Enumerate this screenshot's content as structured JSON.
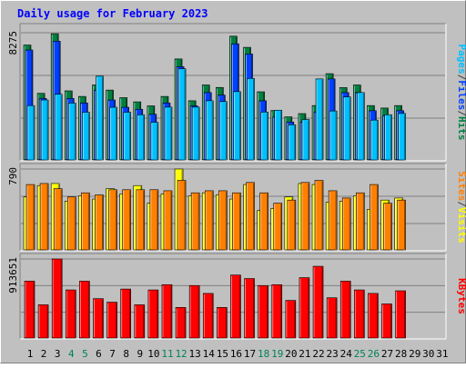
{
  "chart_data": [
    {
      "type": "bar",
      "title": "Daily usage for February 2023",
      "max_label": "8275",
      "legend": [
        "Pages",
        "/",
        "Files",
        "/",
        "Hits"
      ],
      "legend_colors": [
        "#00c0ff",
        "#404040",
        "#0040ff",
        "#404040",
        "#008040"
      ],
      "categories": [
        "1",
        "2",
        "3",
        "4",
        "5",
        "6",
        "7",
        "8",
        "9",
        "10",
        "11",
        "12",
        "13",
        "14",
        "15",
        "16",
        "17",
        "18",
        "19",
        "20",
        "21",
        "22",
        "23",
        "24",
        "25",
        "26",
        "27",
        "28",
        "29",
        "30",
        "31"
      ],
      "weekend_days": [
        4,
        5,
        11,
        12,
        18,
        19,
        25,
        26
      ],
      "ylim": [
        0,
        8275
      ],
      "series": [
        {
          "name": "Hits",
          "color": "#008040",
          "values": [
            7480,
            4360,
            8210,
            4520,
            4160,
            4900,
            4570,
            4080,
            3810,
            3550,
            4160,
            6580,
            3880,
            4900,
            4740,
            8050,
            7330,
            4460,
            3250,
            2840,
            3050,
            3570,
            5630,
            4730,
            4900,
            3570,
            3410,
            3570,
            0,
            0,
            0
          ]
        },
        {
          "name": "Files",
          "color": "#0040ff",
          "values": [
            7160,
            4030,
            7730,
            4030,
            3740,
            4570,
            3930,
            3460,
            3330,
            3010,
            3740,
            6080,
            3550,
            4410,
            4250,
            7560,
            6900,
            3880,
            2840,
            2510,
            2510,
            3160,
            5290,
            4410,
            4410,
            3240,
            2930,
            3240,
            0,
            0,
            0
          ]
        },
        {
          "name": "Pages",
          "color": "#00c0ff",
          "values": [
            3570,
            3930,
            4300,
            3730,
            3140,
            5470,
            3460,
            3140,
            2980,
            2490,
            3470,
            5950,
            3470,
            3880,
            3830,
            4470,
            5320,
            3150,
            3270,
            2330,
            2670,
            5290,
            3220,
            4130,
            4410,
            2630,
            2980,
            3060,
            0,
            0,
            0
          ]
        }
      ]
    },
    {
      "type": "bar",
      "max_label": "790",
      "legend": [
        "Sites",
        "/",
        "Visits"
      ],
      "legend_colors": [
        "#ff8000",
        "#404040",
        "#ffff00"
      ],
      "ylim": [
        0,
        790
      ],
      "series": [
        {
          "name": "Visits",
          "color": "#ffff00",
          "values": [
            520,
            630,
            650,
            480,
            530,
            500,
            600,
            550,
            630,
            460,
            550,
            790,
            530,
            560,
            540,
            500,
            640,
            390,
            410,
            520,
            650,
            640,
            470,
            480,
            530,
            400,
            490,
            510,
            0,
            0,
            0
          ]
        },
        {
          "name": "Sites",
          "color": "#ff8000",
          "values": [
            640,
            650,
            600,
            520,
            560,
            540,
            590,
            590,
            590,
            590,
            580,
            680,
            560,
            580,
            580,
            560,
            660,
            560,
            460,
            490,
            660,
            680,
            580,
            510,
            560,
            640,
            460,
            490,
            0,
            0,
            0
          ]
        }
      ]
    },
    {
      "type": "bar",
      "max_label": "913651",
      "legend": [
        "KBytes"
      ],
      "legend_colors": [
        "#ff0000"
      ],
      "ylim": [
        0,
        913651
      ],
      "series": [
        {
          "name": "KBytes",
          "color": "#ff0000",
          "values": [
            660000,
            390000,
            913651,
            560000,
            660000,
            460000,
            420000,
            570000,
            390000,
            560000,
            620000,
            360000,
            610000,
            520000,
            360000,
            730000,
            690000,
            610000,
            620000,
            440000,
            700000,
            830000,
            470000,
            660000,
            560000,
            520000,
            400000,
            550000,
            0,
            0,
            0
          ]
        }
      ]
    }
  ]
}
